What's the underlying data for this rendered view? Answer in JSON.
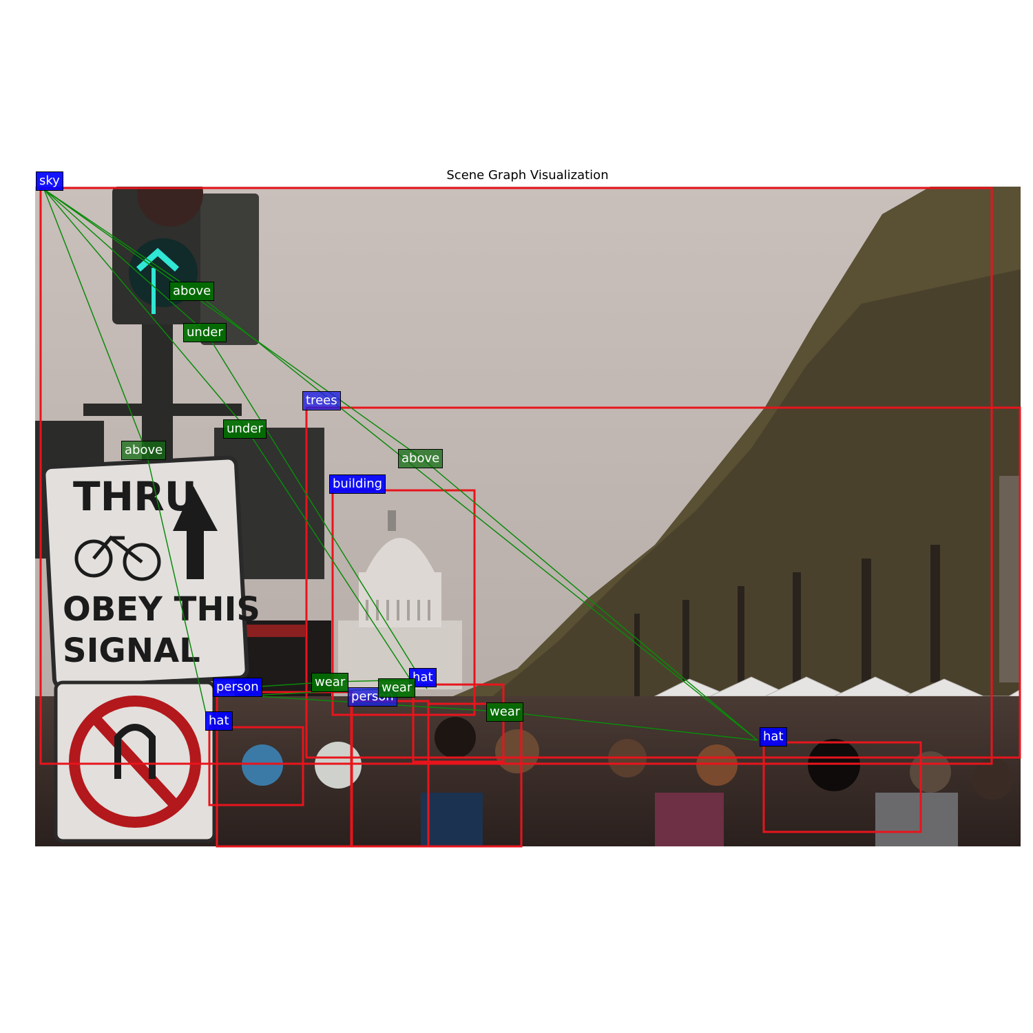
{
  "title": "Scene Graph Visualization",
  "colors": {
    "box": "#e8141c",
    "edge": "#0a8a0a",
    "object_label": "#0000ff",
    "relation_label": "#006e00"
  },
  "objects": [
    {
      "id": "sky",
      "label": "sky"
    },
    {
      "id": "trees",
      "label": "trees"
    },
    {
      "id": "building",
      "label": "building"
    },
    {
      "id": "person1",
      "label": "person"
    },
    {
      "id": "person2",
      "label": "person"
    },
    {
      "id": "hat1",
      "label": "hat"
    },
    {
      "id": "hat2",
      "label": "hat"
    },
    {
      "id": "hat3",
      "label": "hat"
    }
  ],
  "relations": [
    {
      "label": "above",
      "subject": "sky",
      "object": "hat"
    },
    {
      "label": "under",
      "subject": "sky",
      "object": "hat"
    },
    {
      "label": "under",
      "subject": "sky",
      "object": "building"
    },
    {
      "label": "above",
      "subject": "sky",
      "object": "hat"
    },
    {
      "label": "above",
      "subject": "sky",
      "object": "hat"
    },
    {
      "label": "wear",
      "subject": "person",
      "object": "hat"
    },
    {
      "label": "wear",
      "subject": "person",
      "object": "hat"
    },
    {
      "label": "wear",
      "subject": "person",
      "object": "hat"
    }
  ],
  "photo_text": {
    "sign_top": [
      "THRU",
      "OBEY THIS",
      "SIGNAL"
    ]
  }
}
